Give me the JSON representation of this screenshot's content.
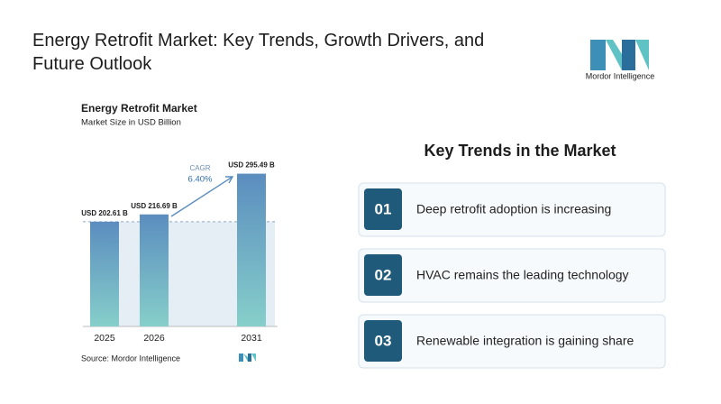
{
  "title": "Energy Retrofit Market: Key Trends, Growth Drivers, and Future Outlook",
  "logo": {
    "text": "Mordor Intelligence"
  },
  "chart_data": {
    "type": "bar",
    "title": "Energy Retrofit Market",
    "subtitle": "Market Size in USD Billion",
    "categories": [
      "2025",
      "2026",
      "2031"
    ],
    "values": [
      202.61,
      216.69,
      295.49
    ],
    "value_labels": [
      "USD 202.61 B",
      "USD 216.69 B",
      "USD 295.49 B"
    ],
    "color": "#5b8dbf",
    "ylim": [
      0,
      300
    ],
    "annotation": {
      "label": "CAGR",
      "value": "6.40%"
    },
    "source": "Source: Mordor Intelligence"
  },
  "trends": {
    "title": "Key Trends in the Market",
    "items": [
      {
        "number": "01",
        "text": "Deep retrofit adoption is increasing"
      },
      {
        "number": "02",
        "text": "HVAC remains the leading technology"
      },
      {
        "number": "03",
        "text": "Renewable integration is gaining share"
      }
    ]
  }
}
